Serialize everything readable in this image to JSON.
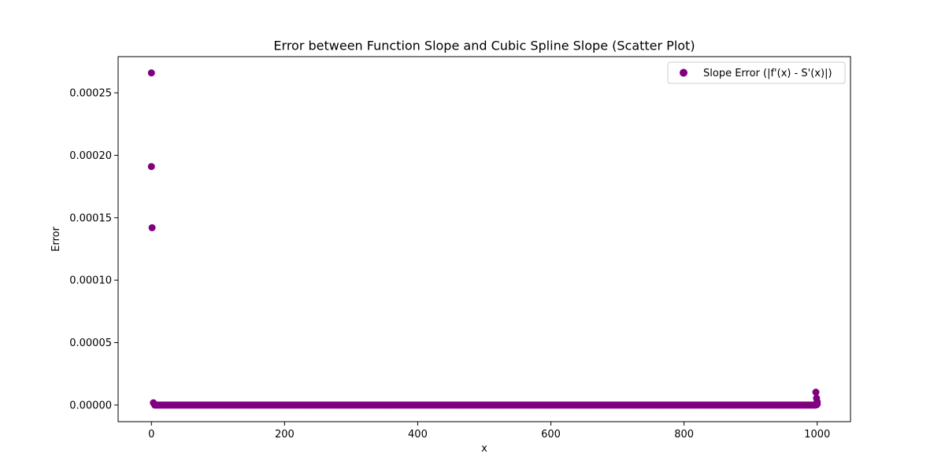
{
  "chart_data": {
    "type": "scatter",
    "title": "Error between Function Slope and Cubic Spline Slope (Scatter Plot)",
    "xlabel": "x",
    "ylabel": "Error",
    "xlim": [
      -50,
      1050
    ],
    "ylim": [
      -1.33e-05,
      0.000279
    ],
    "xticks": [
      0,
      200,
      400,
      600,
      800,
      1000
    ],
    "xtick_labels": [
      "0",
      "200",
      "400",
      "600",
      "800",
      "1000"
    ],
    "yticks": [
      0,
      5e-05,
      0.0001,
      0.00015,
      0.0002,
      0.00025
    ],
    "ytick_labels": [
      "0.00000",
      "0.00005",
      "0.00010",
      "0.00015",
      "0.00020",
      "0.00025"
    ],
    "grid": false,
    "legend_position": "top-right",
    "marker_color": "#800080",
    "series": [
      {
        "name": "Slope Error (|f'(x) - S'(x)|)",
        "color": "#800080",
        "outliers_x": [
          0,
          0,
          1,
          3,
          998,
          999,
          1000,
          1000,
          999
        ],
        "outliers_y": [
          0.000266,
          0.000191,
          0.000142,
          1.8e-06,
          1.03e-05,
          5.5e-06,
          2.5e-06,
          8e-07,
          2e-07
        ],
        "baseline": {
          "x_start": 5,
          "x_end": 997,
          "x_step": 2,
          "y": 0
        }
      }
    ]
  }
}
